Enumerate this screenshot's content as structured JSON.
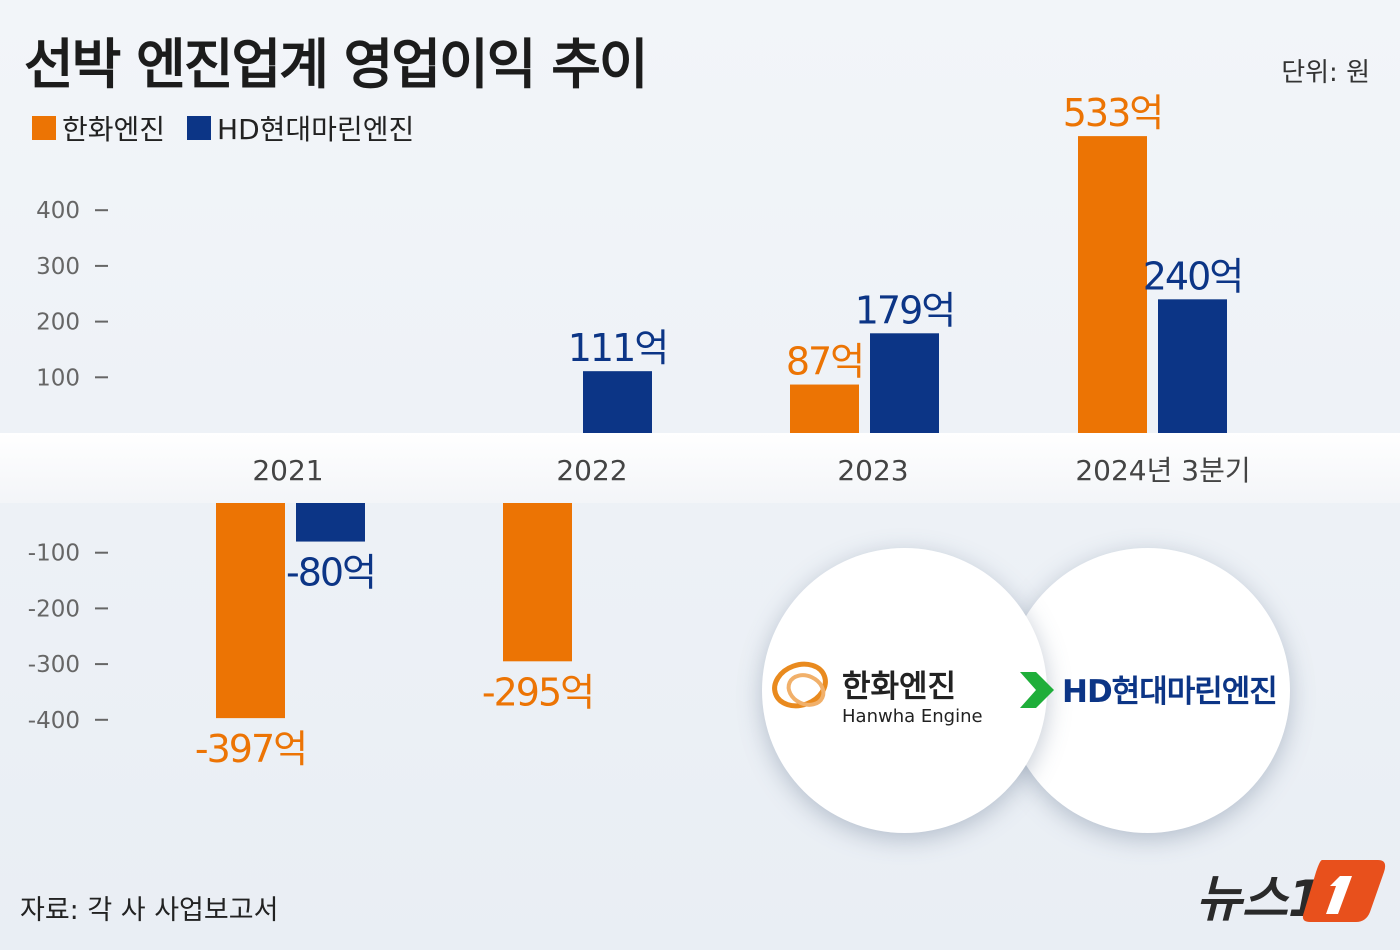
{
  "title": "선박 엔진업계 영업이익 추이",
  "unit": "단위: 원",
  "source": "자료: 각 사 사업보고서",
  "logos": {
    "hanwha_kr": "한화엔진",
    "hanwha_en": "Hanwha Engine",
    "hd": "HD현대마린엔진",
    "news": "뉴스1"
  },
  "chart_data": {
    "type": "bar",
    "title": "선박 엔진업계 영업이익 추이",
    "categories": [
      "2021",
      "2022",
      "2023",
      "2024년 3분기"
    ],
    "series": [
      {
        "name": "한화엔진",
        "color": "#ec7404",
        "values": [
          -397,
          -295,
          87,
          533
        ],
        "labels": [
          "-397억",
          "-295억",
          "87억",
          "533억"
        ]
      },
      {
        "name": "HD현대마린엔진",
        "color": "#0c3586",
        "values": [
          -80,
          111,
          179,
          240
        ],
        "labels": [
          "-80억",
          null,
          "179억",
          "240억"
        ]
      }
    ],
    "series_label_2022_hd": "111억",
    "yticks": [
      400,
      300,
      200,
      100,
      -100,
      -200,
      -300,
      -400
    ],
    "ytick_labels": [
      "400",
      "300",
      "200",
      "100",
      "-100",
      "-200",
      "-300",
      "-400"
    ],
    "ylim": [
      -450,
      560
    ],
    "grid": false,
    "legend": "top-left"
  }
}
